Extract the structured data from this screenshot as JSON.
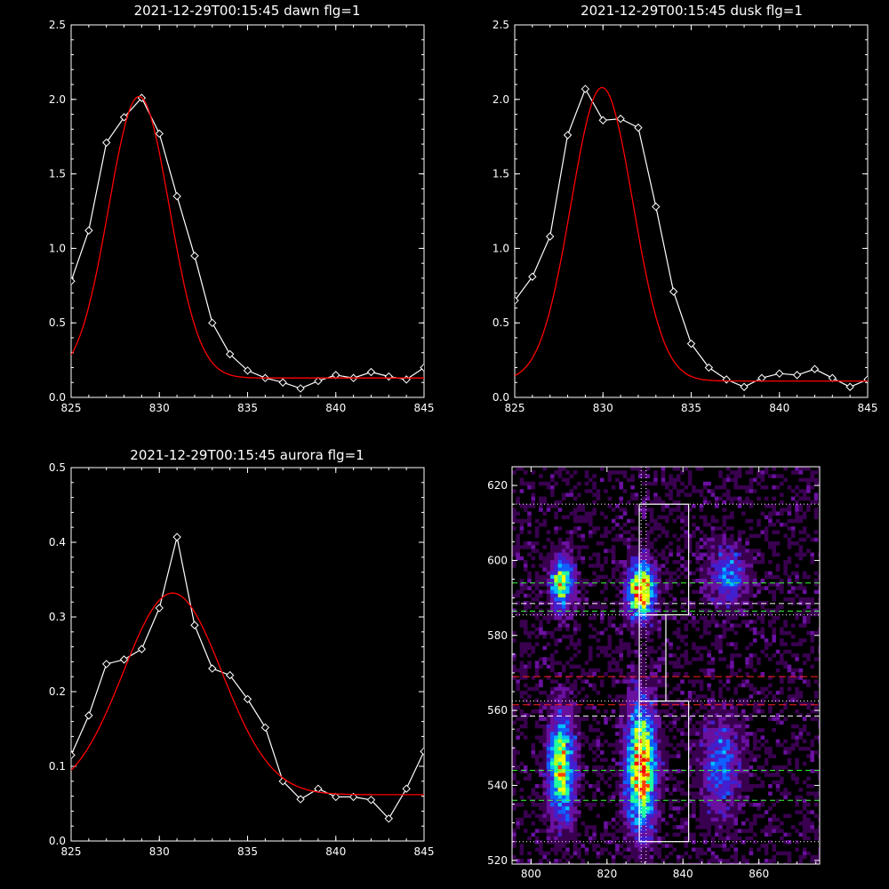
{
  "chart_data": [
    {
      "type": "line",
      "title": "2021-12-29T00:15:45 dawn flg=1",
      "xlim": [
        825,
        845
      ],
      "ylim": [
        0,
        2.5
      ],
      "xticks": [
        "825",
        "830",
        "835",
        "840",
        "845"
      ],
      "yticks": [
        "0.0",
        "0.5",
        "1.0",
        "1.5",
        "2.0",
        "2.5"
      ],
      "grid": false,
      "series": [
        {
          "color": "#ffffff",
          "marker": "diamond",
          "x": [
            825,
            826,
            827,
            828,
            829,
            830,
            831,
            832,
            833,
            834,
            835,
            836,
            837,
            838,
            839,
            840,
            841,
            842,
            843,
            844,
            845
          ],
          "y": [
            0.78,
            1.12,
            1.71,
            1.88,
            2.01,
            1.77,
            1.35,
            0.95,
            0.5,
            0.29,
            0.18,
            0.13,
            0.1,
            0.06,
            0.11,
            0.15,
            0.13,
            0.17,
            0.14,
            0.12,
            0.2
          ]
        },
        {
          "color": "#ff0000",
          "fit": "gaussian",
          "amplitude": 1.89,
          "center": 828.85,
          "sigma": 1.72,
          "baseline": 0.13
        }
      ]
    },
    {
      "type": "line",
      "title": "2021-12-29T00:15:45 dusk flg=1",
      "xlim": [
        825,
        845
      ],
      "ylim": [
        0,
        2.5
      ],
      "xticks": [
        "825",
        "830",
        "835",
        "840",
        "845"
      ],
      "yticks": [
        "0.0",
        "0.5",
        "1.0",
        "1.5",
        "2.0",
        "2.5"
      ],
      "grid": false,
      "series": [
        {
          "color": "#ffffff",
          "marker": "diamond",
          "x": [
            825,
            826,
            827,
            828,
            829,
            830,
            831,
            832,
            833,
            834,
            835,
            836,
            837,
            838,
            839,
            840,
            841,
            842,
            843,
            844,
            845
          ],
          "y": [
            0.65,
            0.81,
            1.08,
            1.76,
            2.07,
            1.86,
            1.87,
            1.81,
            1.28,
            0.71,
            0.36,
            0.2,
            0.12,
            0.07,
            0.13,
            0.16,
            0.15,
            0.19,
            0.13,
            0.07,
            0.12
          ]
        },
        {
          "color": "#ff0000",
          "fit": "gaussian",
          "amplitude": 1.97,
          "center": 829.95,
          "sigma": 1.75,
          "baseline": 0.11
        }
      ]
    },
    {
      "type": "line",
      "title": "2021-12-29T00:15:45 aurora flg=1",
      "xlim": [
        825,
        845
      ],
      "ylim": [
        0,
        0.5
      ],
      "xticks": [
        "825",
        "830",
        "835",
        "840",
        "845"
      ],
      "yticks": [
        "0.0",
        "0.1",
        "0.2",
        "0.3",
        "0.4",
        "0.5"
      ],
      "grid": false,
      "series": [
        {
          "color": "#ffffff",
          "marker": "diamond",
          "x": [
            825,
            826,
            827,
            828,
            829,
            830,
            831,
            832,
            833,
            834,
            835,
            836,
            837,
            838,
            839,
            840,
            841,
            842,
            843,
            844,
            845
          ],
          "y": [
            0.115,
            0.168,
            0.237,
            0.243,
            0.257,
            0.312,
            0.407,
            0.289,
            0.231,
            0.222,
            0.19,
            0.152,
            0.08,
            0.056,
            0.07,
            0.059,
            0.059,
            0.055,
            0.03,
            0.07,
            0.12
          ]
        },
        {
          "color": "#ff0000",
          "fit": "gaussian",
          "amplitude": 0.27,
          "center": 830.75,
          "sigma": 2.8,
          "baseline": 0.062
        }
      ]
    },
    {
      "type": "heatmap",
      "title": "",
      "xlim": [
        795,
        876
      ],
      "ylim": [
        519,
        625
      ],
      "xticks": [
        "800",
        "820",
        "840",
        "860"
      ],
      "yticks": [
        "520",
        "540",
        "560",
        "580",
        "600",
        "620"
      ],
      "colormap": [
        "#000000",
        "#3a0050",
        "#6a10a0",
        "#4020d0",
        "#1060ff",
        "#00c0ff",
        "#20ffa0",
        "#b0ff20",
        "#ffff00",
        "#ff4000",
        "#ff0000"
      ],
      "blobs": [
        {
          "x": 808,
          "y": 594,
          "sx": 2.0,
          "sy": 4.5,
          "amp": 0.75
        },
        {
          "x": 829,
          "y": 592,
          "sx": 2.3,
          "sy": 5.0,
          "amp": 1.0
        },
        {
          "x": 852,
          "y": 596,
          "sx": 3.5,
          "sy": 5.5,
          "amp": 0.35
        },
        {
          "x": 808,
          "y": 545,
          "sx": 2.3,
          "sy": 9.5,
          "amp": 0.75
        },
        {
          "x": 829,
          "y": 545,
          "sx": 2.6,
          "sy": 11.0,
          "amp": 0.95
        },
        {
          "x": 850,
          "y": 545,
          "sx": 3.5,
          "sy": 8.5,
          "amp": 0.35
        }
      ],
      "overlays": {
        "vertical_dotted_x": [
          829,
          830.3
        ],
        "horizontal_dotted_y": [
          615,
          585.5,
          562.5,
          525
        ],
        "green_dashed_y": [
          594,
          586.5,
          544,
          536
        ],
        "white_dashed_y": [
          588.5,
          558.5
        ],
        "red_dashed_y": [
          569,
          561.5
        ],
        "boxes": [
          {
            "x0": 828.5,
            "x1": 841.5,
            "y0": 585.5,
            "y1": 615
          },
          {
            "x0": 828.5,
            "x1": 835.5,
            "y0": 562.5,
            "y1": 585.5
          },
          {
            "x0": 828.5,
            "x1": 841.5,
            "y0": 525,
            "y1": 562.5
          }
        ]
      }
    }
  ]
}
